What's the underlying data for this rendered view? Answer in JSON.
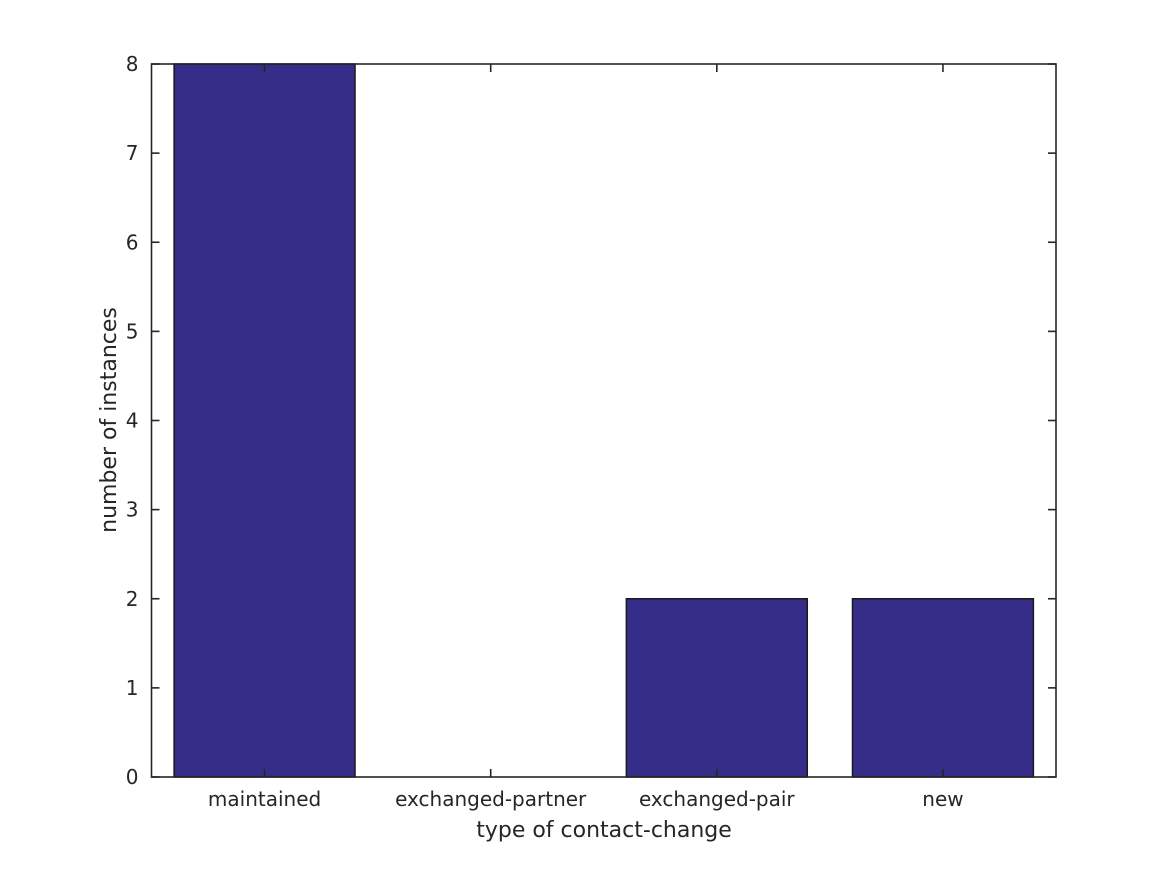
{
  "chart_data": {
    "type": "bar",
    "title": "",
    "xlabel": "type of contact-change",
    "ylabel": "number of instances",
    "categories": [
      "maintained",
      "exchanged-partner",
      "exchanged-pair",
      "new"
    ],
    "values": [
      8,
      0,
      2,
      2
    ],
    "ylim": [
      0,
      8
    ],
    "yticks": [
      0,
      1,
      2,
      3,
      4,
      5,
      6,
      7,
      8
    ],
    "bar_color": "#352d87",
    "bar_edge_color": "#1a1a1a",
    "axis_color": "#262626",
    "text_color": "#262626",
    "background_color": "#ffffff",
    "bar_width_fraction": 0.8,
    "grid": false,
    "legend": null,
    "tick_direction": "in",
    "box": true
  }
}
